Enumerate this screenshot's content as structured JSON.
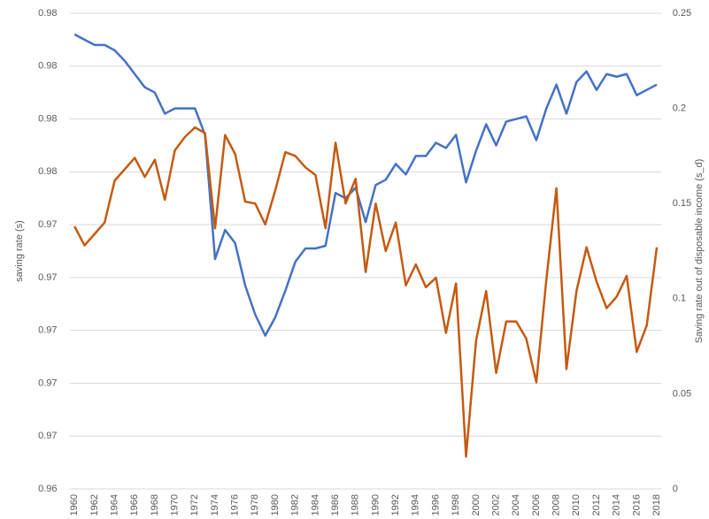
{
  "chart_data": {
    "type": "line",
    "y_label": "saving rate (s)",
    "y2_label": "Saving rate out of disposable income (s_d)",
    "categories": [
      "1960",
      null,
      "1962",
      null,
      "1964",
      null,
      "1966",
      null,
      "1968",
      null,
      "1970",
      null,
      "1972",
      null,
      "1974",
      null,
      "1976",
      null,
      "1978",
      null,
      "1980",
      null,
      "1982",
      null,
      "1984",
      null,
      "1986",
      null,
      "1988",
      null,
      "1990",
      null,
      "1992",
      null,
      "1994",
      null,
      "1996",
      null,
      "1998",
      null,
      "2000",
      null,
      "2002",
      null,
      "2004",
      null,
      "2006",
      null,
      "2008",
      null,
      "2010",
      null,
      "2012",
      null,
      "2014",
      null,
      "2016",
      null,
      "2018"
    ],
    "ylim": [
      0.964,
      0.982
    ],
    "yticks": [
      {
        "value": 0.964,
        "label": "0.96"
      },
      {
        "value": 0.966,
        "label": "0.97"
      },
      {
        "value": 0.968,
        "label": "0.97"
      },
      {
        "value": 0.97,
        "label": "0.97"
      },
      {
        "value": 0.972,
        "label": "0.97"
      },
      {
        "value": 0.974,
        "label": "0.97"
      },
      {
        "value": 0.976,
        "label": "0.98"
      },
      {
        "value": 0.978,
        "label": "0.98"
      },
      {
        "value": 0.98,
        "label": "0.98"
      },
      {
        "value": 0.982,
        "label": "0.98"
      }
    ],
    "y2lim": [
      0,
      0.25
    ],
    "y2ticks": [
      0,
      0.05,
      0.1,
      0.15,
      0.2,
      0.25
    ],
    "grid": true,
    "series": [
      {
        "color": "#4472c4",
        "axis": "y",
        "values": [
          0.9812,
          0.981,
          0.9808,
          0.9808,
          0.9806,
          0.9802,
          0.9797,
          0.9792,
          0.979,
          0.9782,
          0.9784,
          0.9784,
          0.9784,
          0.9774,
          0.9727,
          0.9738,
          0.9733,
          0.9717,
          0.9706,
          0.9698,
          0.9705,
          0.9715,
          0.9726,
          0.9731,
          0.9731,
          0.9732,
          0.9752,
          0.975,
          0.9754,
          0.9741,
          0.9755,
          0.9757,
          0.9763,
          0.9759,
          0.9766,
          0.9766,
          0.9771,
          0.9769,
          0.9774,
          0.9756,
          0.9768,
          0.9778,
          0.977,
          0.9779,
          0.978,
          0.9781,
          0.9772,
          0.9784,
          0.9793,
          0.9782,
          0.9794,
          0.9798,
          0.9791,
          0.9797,
          0.9796,
          0.9797,
          0.9789,
          0.9791,
          0.9793
        ]
      },
      {
        "color": "#c55a11",
        "axis": "y2",
        "values": [
          0.138,
          0.128,
          0.134,
          0.14,
          0.162,
          0.168,
          0.174,
          0.164,
          0.173,
          0.152,
          0.178,
          0.185,
          0.19,
          0.187,
          0.137,
          0.186,
          0.176,
          0.151,
          0.15,
          0.139,
          0.157,
          0.177,
          0.175,
          0.169,
          0.165,
          0.137,
          0.182,
          0.15,
          0.163,
          0.114,
          0.15,
          0.125,
          0.14,
          0.107,
          0.118,
          0.106,
          0.111,
          0.082,
          0.108,
          0.017,
          0.078,
          0.104,
          0.061,
          0.088,
          0.088,
          0.079,
          0.056,
          0.11,
          0.158,
          0.063,
          0.104,
          0.127,
          0.109,
          0.095,
          0.101,
          0.112,
          0.072,
          0.086,
          0.127
        ]
      }
    ]
  }
}
